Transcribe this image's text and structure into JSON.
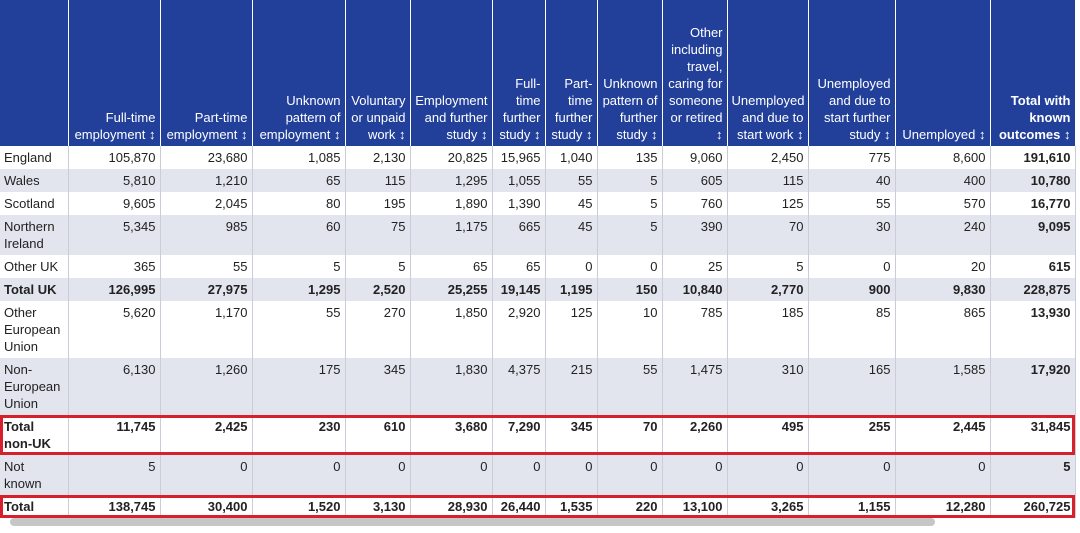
{
  "table": {
    "columns": [
      "Full-time employment ↕",
      "Part-time employment ↕",
      "Unknown pattern of employment ↕",
      "Voluntary or unpaid work ↕",
      "Employment and further study ↕",
      "Full-time further study ↕",
      "Part-time further study ↕",
      "Unknown pattern of further study ↕",
      "Other including travel, caring for someone or retired ↕",
      "Unemployed and due to start work ↕",
      "Unemployed and due to start further study ↕",
      "Unemployed ↕",
      "Total with known outcomes ↕"
    ],
    "rows": [
      {
        "label": "England",
        "cells": [
          "105,870",
          "23,680",
          "1,085",
          "2,130",
          "20,825",
          "15,965",
          "1,040",
          "135",
          "9,060",
          "2,450",
          "775",
          "8,600",
          "191,610"
        ]
      },
      {
        "label": "Wales",
        "cells": [
          "5,810",
          "1,210",
          "65",
          "115",
          "1,295",
          "1,055",
          "55",
          "5",
          "605",
          "115",
          "40",
          "400",
          "10,780"
        ]
      },
      {
        "label": "Scotland",
        "cells": [
          "9,605",
          "2,045",
          "80",
          "195",
          "1,890",
          "1,390",
          "45",
          "5",
          "760",
          "125",
          "55",
          "570",
          "16,770"
        ]
      },
      {
        "label": "Northern Ireland",
        "cells": [
          "5,345",
          "985",
          "60",
          "75",
          "1,175",
          "665",
          "45",
          "5",
          "390",
          "70",
          "30",
          "240",
          "9,095"
        ]
      },
      {
        "label": "Other UK",
        "cells": [
          "365",
          "55",
          "5",
          "5",
          "65",
          "65",
          "0",
          "0",
          "25",
          "5",
          "0",
          "20",
          "615"
        ]
      },
      {
        "label": "Total UK",
        "bold": true,
        "cells": [
          "126,995",
          "27,975",
          "1,295",
          "2,520",
          "25,255",
          "19,145",
          "1,195",
          "150",
          "10,840",
          "2,770",
          "900",
          "9,830",
          "228,875"
        ]
      },
      {
        "label": "Other European Union",
        "cells": [
          "5,620",
          "1,170",
          "55",
          "270",
          "1,850",
          "2,920",
          "125",
          "10",
          "785",
          "185",
          "85",
          "865",
          "13,930"
        ]
      },
      {
        "label": "Non-European Union",
        "cells": [
          "6,130",
          "1,260",
          "175",
          "345",
          "1,830",
          "4,375",
          "215",
          "55",
          "1,475",
          "310",
          "165",
          "1,585",
          "17,920"
        ]
      },
      {
        "label": "Total non-UK",
        "bold": true,
        "outlined": true,
        "cells": [
          "11,745",
          "2,425",
          "230",
          "610",
          "3,680",
          "7,290",
          "345",
          "70",
          "2,260",
          "495",
          "255",
          "2,445",
          "31,845"
        ]
      },
      {
        "label": "Not known",
        "cells": [
          "5",
          "0",
          "0",
          "0",
          "0",
          "0",
          "0",
          "0",
          "0",
          "0",
          "0",
          "0",
          "5"
        ]
      },
      {
        "label": "Total",
        "bold": true,
        "outlined": true,
        "cells": [
          "138,745",
          "30,400",
          "1,520",
          "3,130",
          "28,930",
          "26,440",
          "1,535",
          "220",
          "13,100",
          "3,265",
          "1,155",
          "12,280",
          "260,725"
        ]
      }
    ]
  }
}
